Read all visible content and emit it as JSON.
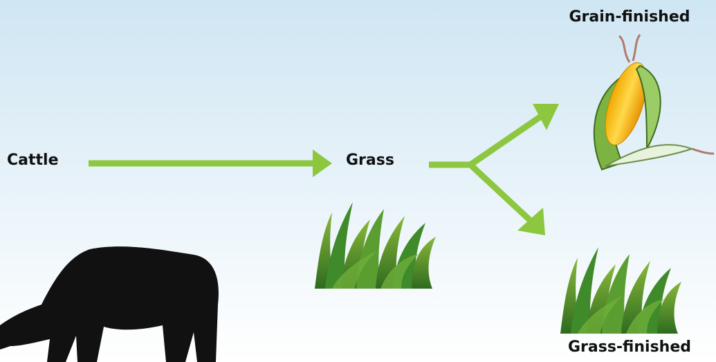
{
  "nodes": [
    {
      "label": "Cattle"
    },
    {
      "label": "Grass"
    },
    {
      "label": "Grain-finished"
    },
    {
      "label": "Grass-finished"
    }
  ]
}
